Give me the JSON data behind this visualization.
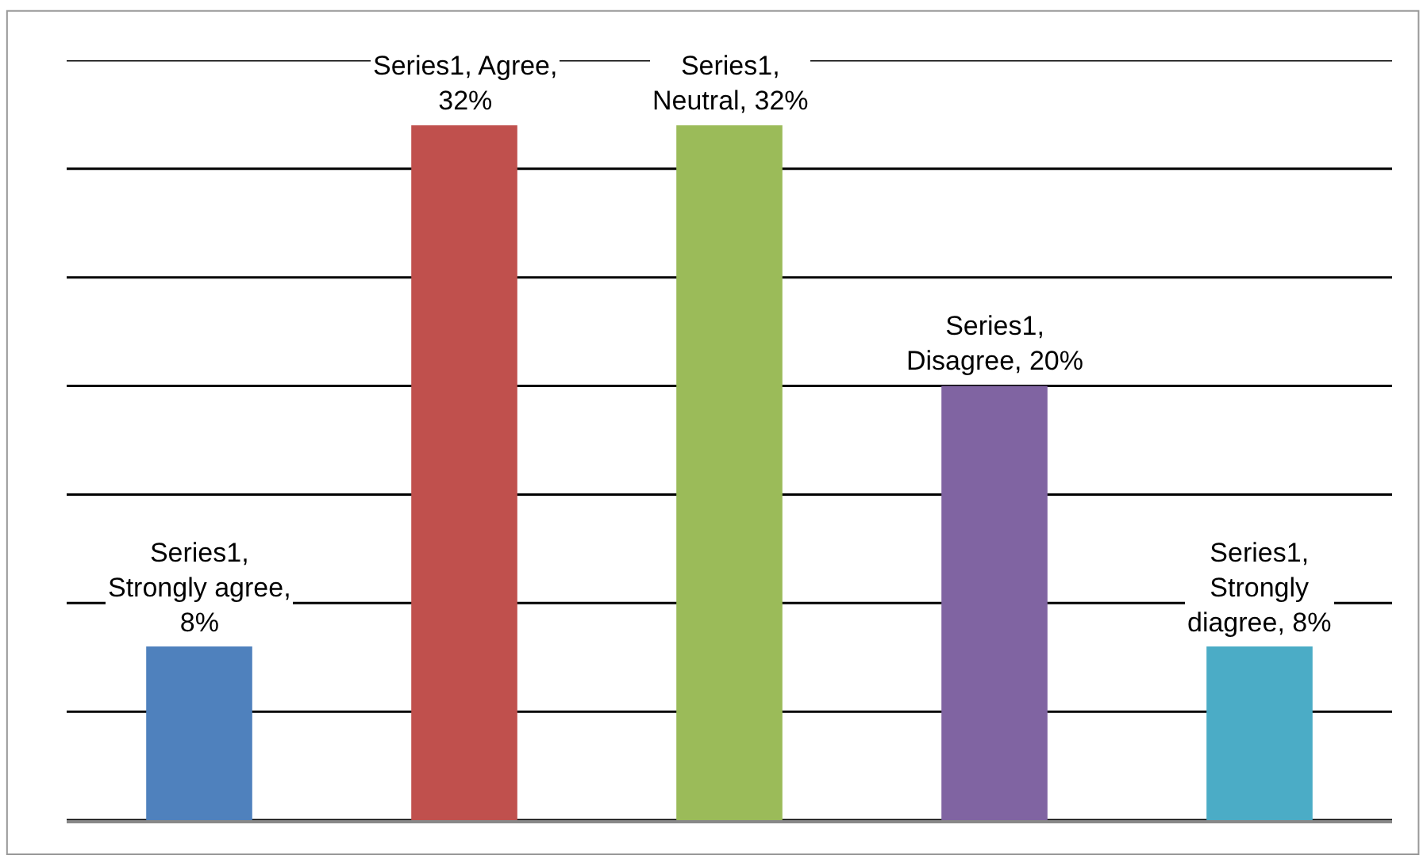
{
  "chart_data": {
    "type": "bar",
    "categories": [
      null,
      null,
      null,
      null,
      null
    ],
    "values": [
      8,
      32,
      32,
      20,
      8
    ],
    "colors": [
      "#4f81bd",
      "#c0504d",
      "#9bbb59",
      "#8064a2",
      "#4bacc6"
    ],
    "value_labels": [
      "Series1, Strongly agree, 8%",
      "Series1, Agree, 32%",
      "Series1, Neutral, 32%",
      "Series1, Disagree, 20%",
      "Series1, Strongly diagree, 8%"
    ],
    "ylim": [
      0,
      35
    ],
    "yticks": [
      {
        "value": 0,
        "label": null
      },
      {
        "value": 5,
        "label": null
      },
      {
        "value": 10,
        "label": null
      },
      {
        "value": 15,
        "label": null
      },
      {
        "value": 20,
        "label": null
      },
      {
        "value": 25,
        "label": null
      },
      {
        "value": 30,
        "label": null
      },
      {
        "value": 35,
        "label": null
      }
    ],
    "grid": "y",
    "legend": false
  }
}
